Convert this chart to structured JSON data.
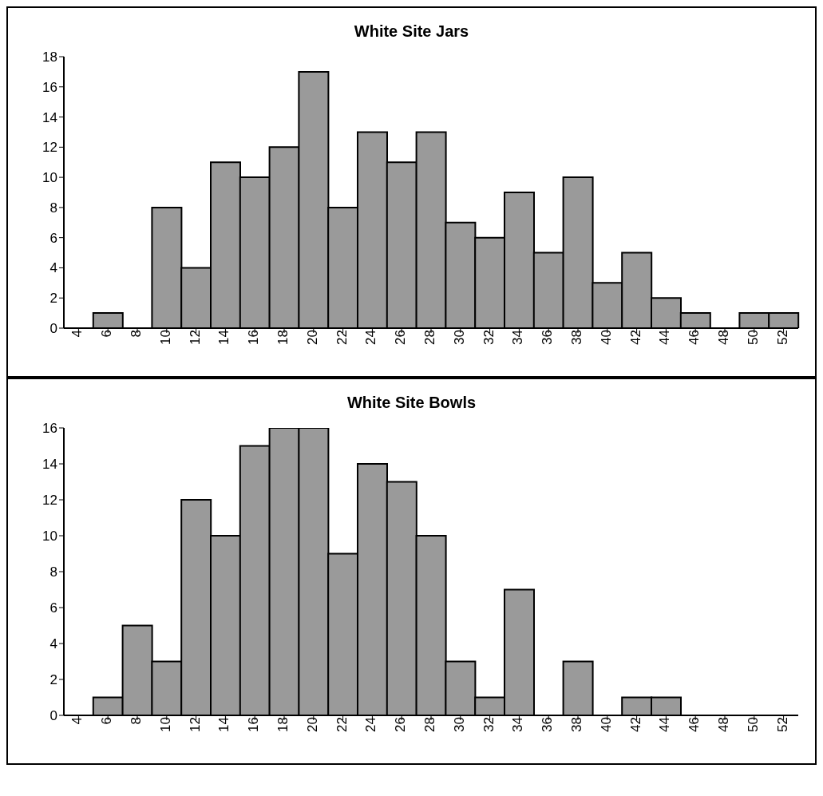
{
  "chart_data": [
    {
      "type": "bar",
      "title": "White Site Jars",
      "categories": [
        "4",
        "6",
        "8",
        "10",
        "12",
        "14",
        "16",
        "18",
        "20",
        "22",
        "24",
        "26",
        "28",
        "30",
        "32",
        "34",
        "36",
        "38",
        "40",
        "42",
        "44",
        "46",
        "48",
        "50",
        "52"
      ],
      "values": [
        0,
        1,
        0,
        8,
        4,
        11,
        10,
        12,
        17,
        8,
        13,
        11,
        13,
        7,
        6,
        9,
        5,
        10,
        3,
        5,
        2,
        1,
        0,
        1,
        1
      ],
      "color": "#9a9a9a",
      "ylim": [
        0,
        18
      ],
      "yticks": [
        0,
        2,
        4,
        6,
        8,
        10,
        12,
        14,
        16,
        18
      ],
      "grid": false,
      "legend": false
    },
    {
      "type": "bar",
      "title": "White Site Bowls",
      "categories": [
        "4",
        "6",
        "8",
        "10",
        "12",
        "14",
        "16",
        "18",
        "20",
        "22",
        "24",
        "26",
        "28",
        "30",
        "32",
        "34",
        "36",
        "38",
        "40",
        "42",
        "44",
        "46",
        "48",
        "50",
        "52"
      ],
      "values": [
        0,
        1,
        5,
        3,
        12,
        10,
        15,
        16,
        16,
        9,
        14,
        13,
        10,
        3,
        1,
        7,
        0,
        3,
        0,
        1,
        1,
        0,
        0,
        0,
        0
      ],
      "color": "#9a9a9a",
      "ylim": [
        0,
        16
      ],
      "yticks": [
        0,
        2,
        4,
        6,
        8,
        10,
        12,
        14,
        16
      ],
      "grid": false,
      "legend": false
    }
  ]
}
